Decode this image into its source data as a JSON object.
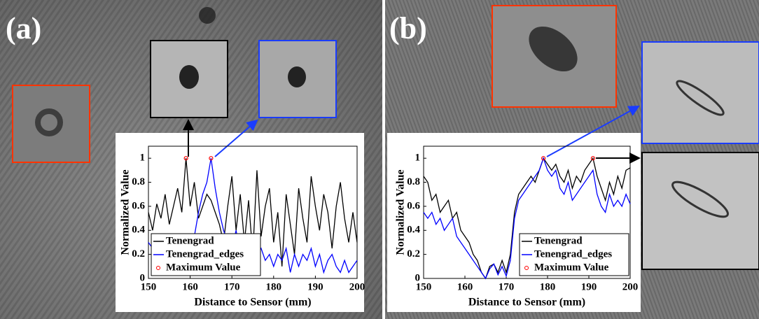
{
  "chart_data": [
    {
      "type": "line",
      "label": "(a)",
      "xlabel": "Distance to Sensor (mm)",
      "ylabel": "Normalized Value",
      "x": [
        150,
        151,
        152,
        153,
        154,
        155,
        156,
        157,
        158,
        159,
        160,
        161,
        162,
        163,
        164,
        165,
        166,
        167,
        168,
        169,
        170,
        171,
        172,
        173,
        174,
        175,
        176,
        177,
        178,
        179,
        180,
        181,
        182,
        183,
        184,
        185,
        186,
        187,
        188,
        189,
        190,
        191,
        192,
        193,
        194,
        195,
        196,
        197,
        198,
        199,
        200
      ],
      "series": [
        {
          "name": "Tenengrad",
          "color": "#000000",
          "values": [
            0.55,
            0.4,
            0.62,
            0.5,
            0.7,
            0.45,
            0.6,
            0.75,
            0.55,
            1,
            0.6,
            0.8,
            0.5,
            0.6,
            0.7,
            0.65,
            0.55,
            0.45,
            0.3,
            0.6,
            0.85,
            0.4,
            0.7,
            0.3,
            0.65,
            0.2,
            0.9,
            0.35,
            0.6,
            0.75,
            0.3,
            0.55,
            0.1,
            0.7,
            0.45,
            0.2,
            0.75,
            0.5,
            0.3,
            0.85,
            0.6,
            0.4,
            0.7,
            0.55,
            0.25,
            0.6,
            0.8,
            0.5,
            0.3,
            0.55,
            0.3
          ]
        },
        {
          "name": "Tenengrad_edges",
          "color": "#0000ff",
          "values": [
            0.3,
            0.25,
            0.3,
            0.2,
            0.1,
            0.05,
            0.05,
            0.03,
            0.06,
            0.1,
            0.2,
            0.35,
            0.55,
            0.7,
            0.8,
            1,
            0.75,
            0.55,
            0.4,
            0.3,
            0.25,
            0.4,
            0.2,
            0.25,
            0.3,
            0.15,
            0.2,
            0.25,
            0.15,
            0.2,
            0.1,
            0.2,
            0.15,
            0.25,
            0.05,
            0.2,
            0.1,
            0.2,
            0.15,
            0.25,
            0.1,
            0.2,
            0.05,
            0.15,
            0.2,
            0.1,
            0.05,
            0.15,
            0.05,
            0.1,
            0.15
          ]
        }
      ],
      "max_points": {
        "name": "Maximum Value",
        "color": "#ff0000",
        "x": [
          159,
          165
        ],
        "values": [
          1,
          1
        ]
      },
      "xlim": [
        150,
        200
      ],
      "ylim": [
        0,
        1.1
      ],
      "xticks": [
        150,
        160,
        170,
        180,
        190,
        200
      ],
      "yticks": [
        0,
        0.2,
        0.4,
        0.6,
        0.8,
        1
      ],
      "legend": "lower left"
    },
    {
      "type": "line",
      "label": "(b)",
      "xlabel": "Distance to Sensor (mm)",
      "ylabel": "Normalized Value",
      "x": [
        150,
        151,
        152,
        153,
        154,
        155,
        156,
        157,
        158,
        159,
        160,
        161,
        162,
        163,
        164,
        165,
        166,
        167,
        168,
        169,
        170,
        171,
        172,
        173,
        174,
        175,
        176,
        177,
        178,
        179,
        180,
        181,
        182,
        183,
        184,
        185,
        186,
        187,
        188,
        189,
        190,
        191,
        192,
        193,
        194,
        195,
        196,
        197,
        198,
        199,
        200
      ],
      "series": [
        {
          "name": "Tenengrad",
          "color": "#000000",
          "values": [
            0.85,
            0.8,
            0.65,
            0.7,
            0.55,
            0.6,
            0.65,
            0.5,
            0.55,
            0.4,
            0.35,
            0.3,
            0.2,
            0.15,
            0.05,
            0,
            0.1,
            0.12,
            0.05,
            0.15,
            0.05,
            0.2,
            0.55,
            0.7,
            0.75,
            0.8,
            0.85,
            0.8,
            0.9,
            1,
            0.95,
            0.9,
            0.95,
            0.85,
            0.8,
            0.9,
            0.75,
            0.85,
            0.8,
            0.9,
            0.95,
            1,
            0.85,
            0.75,
            0.65,
            0.8,
            0.7,
            0.85,
            0.75,
            0.9,
            0.92
          ]
        },
        {
          "name": "Tenengrad_edges",
          "color": "#0000ff",
          "values": [
            0.55,
            0.5,
            0.55,
            0.45,
            0.5,
            0.4,
            0.45,
            0.5,
            0.35,
            0.3,
            0.25,
            0.2,
            0.15,
            0.1,
            0.05,
            0,
            0.08,
            0.12,
            0.03,
            0.1,
            0.02,
            0.15,
            0.5,
            0.65,
            0.7,
            0.75,
            0.8,
            0.85,
            0.9,
            1,
            0.9,
            0.85,
            0.9,
            0.75,
            0.7,
            0.8,
            0.65,
            0.7,
            0.75,
            0.8,
            0.85,
            0.9,
            0.7,
            0.6,
            0.55,
            0.7,
            0.6,
            0.65,
            0.6,
            0.7,
            0.62
          ]
        }
      ],
      "max_points": {
        "name": "Maximum Value",
        "color": "#ff0000",
        "x": [
          179,
          191
        ],
        "values": [
          1,
          1
        ]
      },
      "xlim": [
        150,
        200
      ],
      "ylim": [
        0,
        1.1
      ],
      "xticks": [
        150,
        160,
        170,
        180,
        190,
        200
      ],
      "yticks": [
        0,
        0.2,
        0.4,
        0.6,
        0.8,
        1
      ],
      "legend": "lower right"
    }
  ]
}
